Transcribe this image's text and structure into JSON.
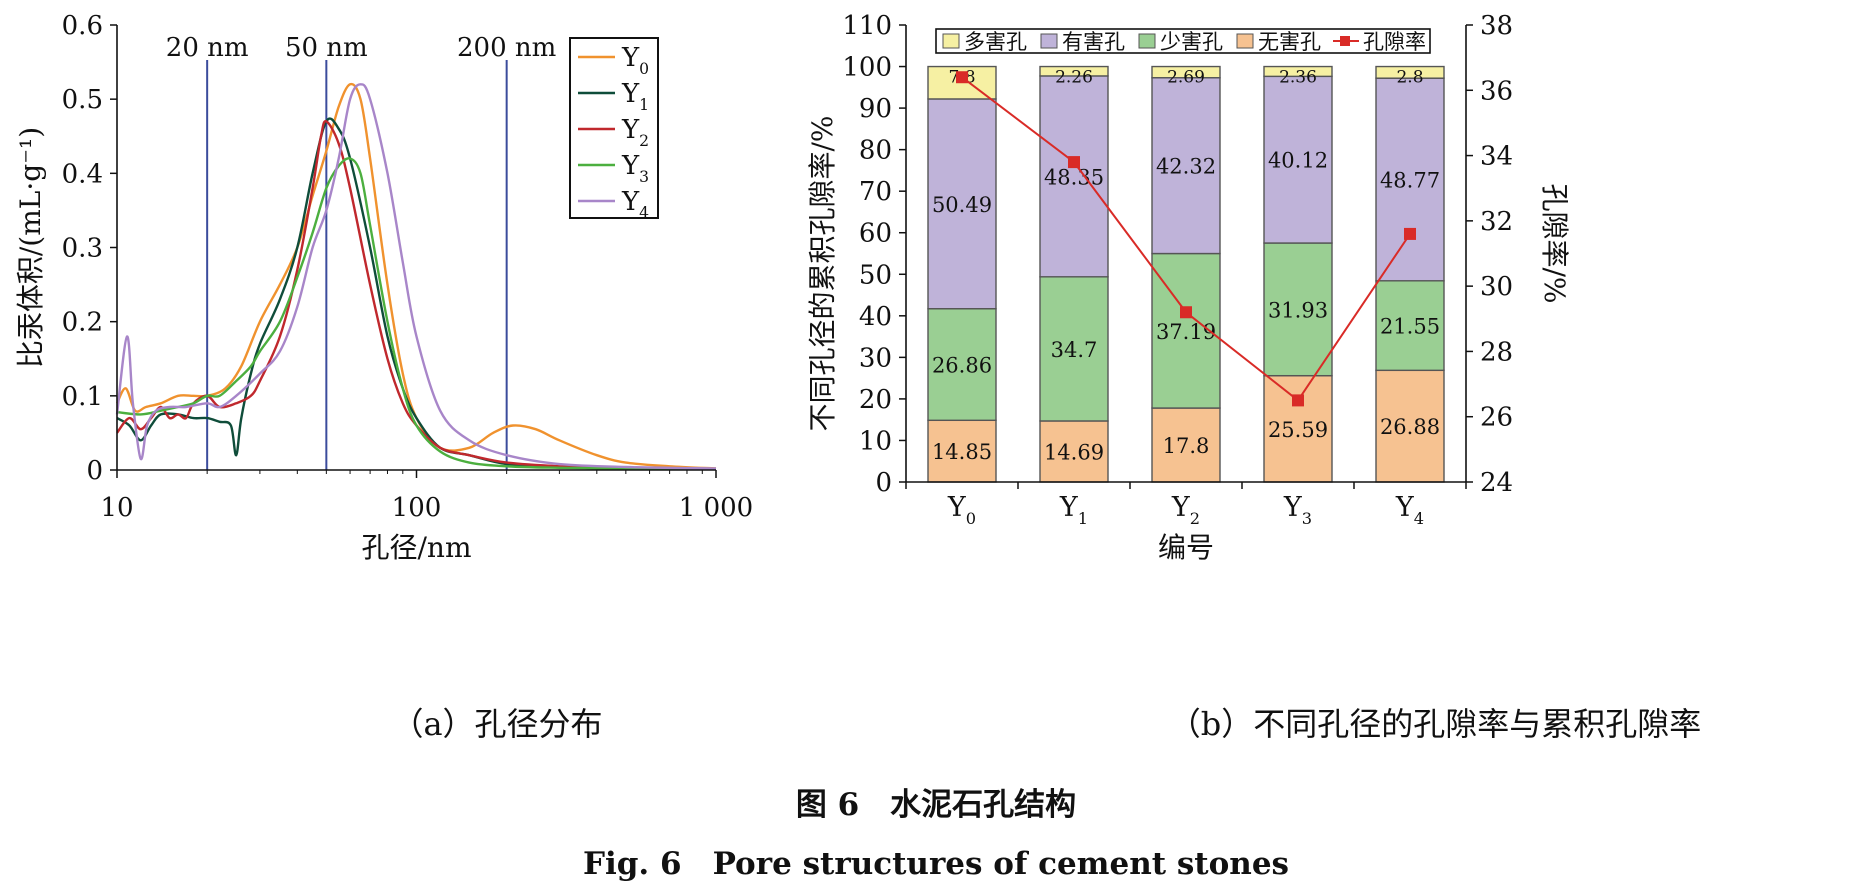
{
  "charts": [
    {
      "type": "line",
      "subcaption": "（a）孔径分布",
      "xlabel": "孔径/nm",
      "ylabel": "比汞体积/(mL·g⁻¹)",
      "xscale": "log",
      "xlim": [
        10,
        1000
      ],
      "ylim": [
        0,
        0.6
      ],
      "xticks": [
        "10",
        "100",
        "1 000"
      ],
      "yticks": [
        "0",
        "0.1",
        "0.2",
        "0.3",
        "0.4",
        "0.5",
        "0.6"
      ],
      "reference_lines": [
        {
          "x": 20,
          "label": "20 nm"
        },
        {
          "x": 50,
          "label": "50 nm"
        },
        {
          "x": 200,
          "label": "200 nm"
        }
      ],
      "legend_position": "top-right",
      "series": [
        {
          "name": "Y",
          "sub": "0",
          "color": "#F0922E",
          "points": [
            [
              10,
              0.09
            ],
            [
              10.7,
              0.11
            ],
            [
              11.5,
              0.08
            ],
            [
              12.5,
              0.085
            ],
            [
              14,
              0.09
            ],
            [
              16,
              0.1
            ],
            [
              18,
              0.1
            ],
            [
              20,
              0.1
            ],
            [
              23,
              0.11
            ],
            [
              26,
              0.14
            ],
            [
              30,
              0.2
            ],
            [
              35,
              0.25
            ],
            [
              40,
              0.3
            ],
            [
              45,
              0.37
            ],
            [
              50,
              0.43
            ],
            [
              55,
              0.49
            ],
            [
              60,
              0.52
            ],
            [
              65,
              0.5
            ],
            [
              70,
              0.42
            ],
            [
              80,
              0.25
            ],
            [
              90,
              0.13
            ],
            [
              100,
              0.07
            ],
            [
              120,
              0.03
            ],
            [
              150,
              0.03
            ],
            [
              180,
              0.05
            ],
            [
              210,
              0.06
            ],
            [
              250,
              0.055
            ],
            [
              300,
              0.04
            ],
            [
              400,
              0.02
            ],
            [
              500,
              0.01
            ],
            [
              700,
              0.005
            ],
            [
              1000,
              0.002
            ]
          ]
        },
        {
          "name": "Y",
          "sub": "1",
          "color": "#0F4D3A",
          "points": [
            [
              10,
              0.07
            ],
            [
              11,
              0.06
            ],
            [
              12,
              0.04
            ],
            [
              13,
              0.06
            ],
            [
              14,
              0.075
            ],
            [
              16,
              0.075
            ],
            [
              18,
              0.07
            ],
            [
              20,
              0.07
            ],
            [
              22,
              0.065
            ],
            [
              24,
              0.06
            ],
            [
              25,
              0.02
            ],
            [
              26,
              0.07
            ],
            [
              28,
              0.13
            ],
            [
              30,
              0.17
            ],
            [
              35,
              0.23
            ],
            [
              40,
              0.3
            ],
            [
              45,
              0.4
            ],
            [
              50,
              0.47
            ],
            [
              55,
              0.46
            ],
            [
              60,
              0.42
            ],
            [
              70,
              0.3
            ],
            [
              80,
              0.18
            ],
            [
              90,
              0.11
            ],
            [
              100,
              0.07
            ],
            [
              120,
              0.03
            ],
            [
              150,
              0.02
            ],
            [
              200,
              0.008
            ],
            [
              300,
              0.004
            ],
            [
              500,
              0.002
            ],
            [
              1000,
              0.001
            ]
          ]
        },
        {
          "name": "Y",
          "sub": "2",
          "color": "#C0282D",
          "points": [
            [
              10,
              0.05
            ],
            [
              11,
              0.07
            ],
            [
              12,
              0.055
            ],
            [
              13,
              0.07
            ],
            [
              14,
              0.085
            ],
            [
              15,
              0.07
            ],
            [
              16,
              0.075
            ],
            [
              17,
              0.07
            ],
            [
              18,
              0.09
            ],
            [
              20,
              0.1
            ],
            [
              22,
              0.085
            ],
            [
              25,
              0.09
            ],
            [
              28,
              0.1
            ],
            [
              30,
              0.12
            ],
            [
              35,
              0.18
            ],
            [
              40,
              0.27
            ],
            [
              45,
              0.38
            ],
            [
              48,
              0.45
            ],
            [
              50,
              0.47
            ],
            [
              55,
              0.44
            ],
            [
              60,
              0.38
            ],
            [
              70,
              0.25
            ],
            [
              80,
              0.15
            ],
            [
              90,
              0.09
            ],
            [
              100,
              0.06
            ],
            [
              120,
              0.03
            ],
            [
              150,
              0.02
            ],
            [
              200,
              0.01
            ],
            [
              300,
              0.005
            ],
            [
              500,
              0.002
            ],
            [
              1000,
              0.001
            ]
          ]
        },
        {
          "name": "Y",
          "sub": "3",
          "color": "#4CAF3F",
          "points": [
            [
              10,
              0.078
            ],
            [
              12,
              0.075
            ],
            [
              14,
              0.08
            ],
            [
              16,
              0.085
            ],
            [
              18,
              0.09
            ],
            [
              20,
              0.1
            ],
            [
              22,
              0.1
            ],
            [
              25,
              0.12
            ],
            [
              28,
              0.14
            ],
            [
              30,
              0.16
            ],
            [
              35,
              0.2
            ],
            [
              40,
              0.26
            ],
            [
              45,
              0.32
            ],
            [
              50,
              0.38
            ],
            [
              55,
              0.41
            ],
            [
              60,
              0.42
            ],
            [
              65,
              0.4
            ],
            [
              70,
              0.33
            ],
            [
              80,
              0.2
            ],
            [
              90,
              0.11
            ],
            [
              100,
              0.06
            ],
            [
              120,
              0.025
            ],
            [
              150,
              0.01
            ],
            [
              200,
              0.005
            ],
            [
              300,
              0.003
            ],
            [
              500,
              0.002
            ],
            [
              1000,
              0.001
            ]
          ]
        },
        {
          "name": "Y",
          "sub": "4",
          "color": "#A886C9",
          "points": [
            [
              10,
              0.075
            ],
            [
              10.8,
              0.18
            ],
            [
              11.3,
              0.09
            ],
            [
              12,
              0.015
            ],
            [
              12.6,
              0.06
            ],
            [
              13.5,
              0.08
            ],
            [
              15,
              0.085
            ],
            [
              17,
              0.085
            ],
            [
              20,
              0.09
            ],
            [
              22,
              0.085
            ],
            [
              25,
              0.1
            ],
            [
              30,
              0.13
            ],
            [
              35,
              0.16
            ],
            [
              40,
              0.22
            ],
            [
              45,
              0.3
            ],
            [
              50,
              0.35
            ],
            [
              55,
              0.42
            ],
            [
              60,
              0.5
            ],
            [
              65,
              0.52
            ],
            [
              70,
              0.5
            ],
            [
              80,
              0.4
            ],
            [
              90,
              0.28
            ],
            [
              100,
              0.18
            ],
            [
              120,
              0.08
            ],
            [
              150,
              0.04
            ],
            [
              200,
              0.02
            ],
            [
              300,
              0.008
            ],
            [
              500,
              0.004
            ],
            [
              1000,
              0.002
            ]
          ]
        }
      ]
    },
    {
      "type": "bar",
      "stacked": true,
      "subcaption": "（b）不同孔径的孔隙率与累积孔隙率",
      "xlabel": "编号",
      "ylabel": "不同孔径的累积孔隙率/%",
      "ylabel_right": "孔隙率/%",
      "ylim": [
        0,
        110
      ],
      "ylim_right": [
        24,
        38
      ],
      "yticks": [
        "0",
        "10",
        "20",
        "30",
        "40",
        "50",
        "60",
        "70",
        "80",
        "90",
        "100",
        "110"
      ],
      "yticks_right": [
        "24",
        "26",
        "28",
        "30",
        "32",
        "34",
        "36",
        "38"
      ],
      "categories": [
        {
          "name": "Y",
          "sub": "0"
        },
        {
          "name": "Y",
          "sub": "1"
        },
        {
          "name": "Y",
          "sub": "2"
        },
        {
          "name": "Y",
          "sub": "3"
        },
        {
          "name": "Y",
          "sub": "4"
        }
      ],
      "legend_position": "top",
      "series": [
        {
          "name": "无害孔",
          "color": "#F6C291",
          "values": [
            14.85,
            14.69,
            17.8,
            25.59,
            26.88
          ],
          "labels": [
            "14.85",
            "14.69",
            "17.8",
            "25.59",
            "26.88"
          ]
        },
        {
          "name": "少害孔",
          "color": "#9ACF93",
          "values": [
            26.86,
            34.7,
            37.19,
            31.93,
            21.55
          ],
          "labels": [
            "26.86",
            "34.7",
            "37.19",
            "31.93",
            "21.55"
          ]
        },
        {
          "name": "有害孔",
          "color": "#BFB3D9",
          "values": [
            50.49,
            48.35,
            42.32,
            40.12,
            48.77
          ],
          "labels": [
            "50.49",
            "48.35",
            "42.32",
            "40.12",
            "48.77"
          ]
        },
        {
          "name": "多害孔",
          "color": "#F6F0A3",
          "values": [
            7.8,
            2.26,
            2.69,
            2.36,
            2.8
          ],
          "labels": [
            "7.8",
            "2.26",
            "2.69",
            "2.36",
            "2.8"
          ]
        }
      ],
      "line_series": {
        "name": "孔隙率",
        "color": "#D92B27",
        "axis": "right",
        "values": [
          36.4,
          33.8,
          29.2,
          26.5,
          31.6
        ]
      }
    }
  ],
  "caption": {
    "cn": "图 6　水泥石孔结构",
    "en": "Fig. 6　Pore structures of cement stones"
  }
}
